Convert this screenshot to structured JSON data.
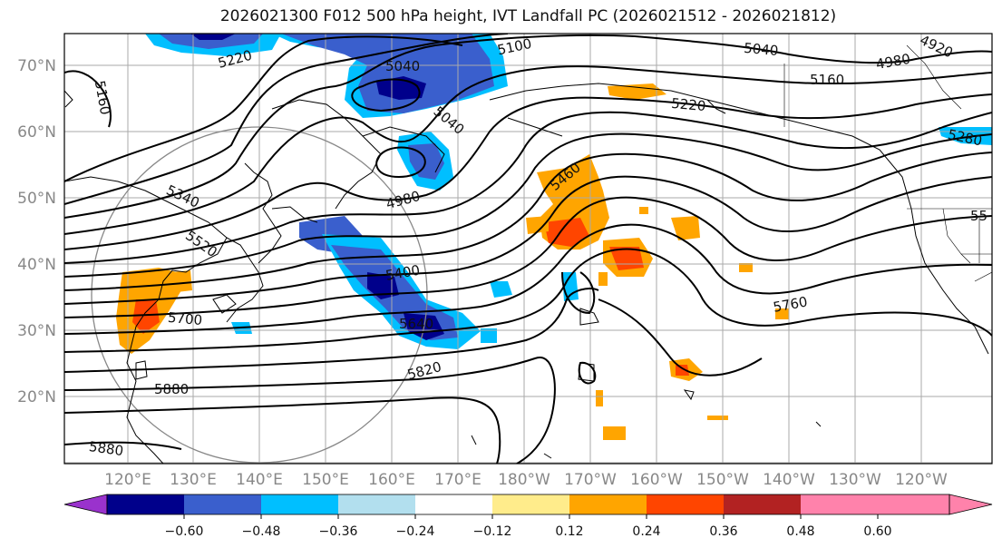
{
  "title": "2026021300 F012 500 hPa height, IVT Landfall PC (2026021512 - 2026021812)",
  "lat_labels": [
    "70°N",
    "60°N",
    "50°N",
    "40°N",
    "30°N",
    "20°N"
  ],
  "lon_labels": [
    "120°E",
    "130°E",
    "140°E",
    "150°E",
    "160°E",
    "170°E",
    "180°W",
    "170°W",
    "160°W",
    "150°W",
    "140°W",
    "130°W",
    "120°W"
  ],
  "contour_labels": [
    "5160",
    "5220",
    "5100",
    "5040",
    "5040",
    "4980",
    "4920",
    "5160",
    "5220",
    "5280",
    "5040",
    "4980",
    "5460",
    "5340",
    "5520",
    "5700",
    "5880",
    "5880",
    "5400",
    "5640",
    "5820",
    "5760",
    "55"
  ],
  "colorbar": {
    "ticks": [
      "−0.60",
      "−0.48",
      "−0.36",
      "−0.24",
      "−0.12",
      "0.12",
      "0.24",
      "0.36",
      "0.48",
      "0.60"
    ],
    "colors": [
      "#9a32cd",
      "#00008b",
      "#3a5fcd",
      "#00bfff",
      "#b2dfee",
      "#ffffff",
      "#ffec8b",
      "#ffa500",
      "#ff4500",
      "#b22222",
      "#ff82ab"
    ]
  }
}
